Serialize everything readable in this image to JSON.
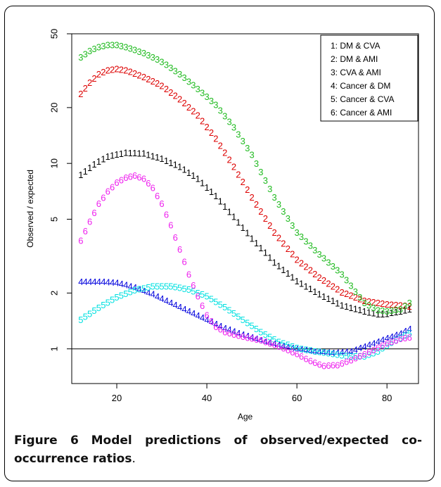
{
  "caption": {
    "label": "Figure 6",
    "text": "Model predictions of observed/expected co-occurrence ratios",
    "period": "."
  },
  "chart_data": {
    "type": "line",
    "xlabel": "Age",
    "ylabel": "Observed / expected",
    "xlim": [
      10,
      87
    ],
    "ylim": [
      0.65,
      50
    ],
    "log_y": true,
    "x_ticks": [
      20,
      40,
      60,
      80
    ],
    "y_ticks": [
      1,
      2,
      5,
      10,
      20,
      50
    ],
    "hline": 1,
    "legend_position": "top-right",
    "age_range": [
      12,
      85
    ],
    "series": [
      {
        "name": "1: DM & CVA",
        "symbol": "1",
        "color": "#000000",
        "points": [
          [
            12,
            8.6
          ],
          [
            15,
            9.8
          ],
          [
            18,
            10.8
          ],
          [
            22,
            11.3
          ],
          [
            26,
            11.2
          ],
          [
            30,
            10.5
          ],
          [
            34,
            9.5
          ],
          [
            38,
            8.2
          ],
          [
            42,
            6.6
          ],
          [
            46,
            5.1
          ],
          [
            50,
            3.9
          ],
          [
            55,
            2.9
          ],
          [
            60,
            2.3
          ],
          [
            65,
            1.95
          ],
          [
            70,
            1.7
          ],
          [
            75,
            1.58
          ],
          [
            78,
            1.52
          ],
          [
            80,
            1.53
          ],
          [
            83,
            1.58
          ],
          [
            85,
            1.62
          ]
        ]
      },
      {
        "name": "2: DM & AMI",
        "symbol": "2",
        "color": "#dd0000",
        "points": [
          [
            12,
            23.5
          ],
          [
            14,
            27
          ],
          [
            16,
            30
          ],
          [
            18,
            31.5
          ],
          [
            20,
            32
          ],
          [
            22,
            31.5
          ],
          [
            26,
            29
          ],
          [
            30,
            26
          ],
          [
            34,
            22
          ],
          [
            38,
            18
          ],
          [
            42,
            13.5
          ],
          [
            46,
            9.5
          ],
          [
            50,
            6.5
          ],
          [
            55,
            4.2
          ],
          [
            60,
            3.0
          ],
          [
            65,
            2.4
          ],
          [
            70,
            2.0
          ],
          [
            75,
            1.8
          ],
          [
            80,
            1.72
          ],
          [
            85,
            1.68
          ]
        ]
      },
      {
        "name": "3: CVA & AMI",
        "symbol": "3",
        "color": "#22bb22",
        "points": [
          [
            12,
            37
          ],
          [
            14,
            40
          ],
          [
            16,
            42
          ],
          [
            18,
            43
          ],
          [
            20,
            43
          ],
          [
            22,
            42
          ],
          [
            26,
            39
          ],
          [
            30,
            35
          ],
          [
            34,
            30
          ],
          [
            38,
            25
          ],
          [
            42,
            20.5
          ],
          [
            46,
            15.5
          ],
          [
            50,
            11
          ],
          [
            55,
            6.5
          ],
          [
            60,
            4.2
          ],
          [
            65,
            3.2
          ],
          [
            70,
            2.5
          ],
          [
            75,
            1.75
          ],
          [
            78,
            1.6
          ],
          [
            80,
            1.58
          ],
          [
            83,
            1.62
          ],
          [
            85,
            1.75
          ]
        ]
      },
      {
        "name": "4: Cancer & DM",
        "symbol": "4",
        "color": "#0000dd",
        "points": [
          [
            12,
            2.28
          ],
          [
            16,
            2.28
          ],
          [
            20,
            2.25
          ],
          [
            24,
            2.12
          ],
          [
            28,
            1.95
          ],
          [
            32,
            1.75
          ],
          [
            36,
            1.58
          ],
          [
            40,
            1.42
          ],
          [
            44,
            1.28
          ],
          [
            48,
            1.18
          ],
          [
            52,
            1.1
          ],
          [
            56,
            1.04
          ],
          [
            60,
            0.99
          ],
          [
            64,
            0.96
          ],
          [
            68,
            0.94
          ],
          [
            72,
            0.96
          ],
          [
            76,
            1.04
          ],
          [
            80,
            1.13
          ],
          [
            83,
            1.2
          ],
          [
            85,
            1.27
          ]
        ]
      },
      {
        "name": "5: Cancer & CVA",
        "symbol": "5",
        "color": "#00e0e0",
        "points": [
          [
            12,
            1.42
          ],
          [
            16,
            1.65
          ],
          [
            20,
            1.88
          ],
          [
            24,
            2.05
          ],
          [
            28,
            2.15
          ],
          [
            32,
            2.15
          ],
          [
            36,
            2.07
          ],
          [
            40,
            1.9
          ],
          [
            44,
            1.66
          ],
          [
            48,
            1.42
          ],
          [
            52,
            1.22
          ],
          [
            56,
            1.08
          ],
          [
            60,
            1.0
          ],
          [
            64,
            0.96
          ],
          [
            68,
            0.93
          ],
          [
            72,
            0.9
          ],
          [
            75,
            0.9
          ],
          [
            78,
            0.96
          ],
          [
            81,
            1.07
          ],
          [
            85,
            1.2
          ]
        ]
      },
      {
        "name": "6: Cancer & AMI",
        "symbol": "6",
        "color": "#ee22ee",
        "points": [
          [
            12,
            3.8
          ],
          [
            14,
            4.8
          ],
          [
            16,
            6.0
          ],
          [
            18,
            7.0
          ],
          [
            20,
            7.8
          ],
          [
            22,
            8.3
          ],
          [
            24,
            8.5
          ],
          [
            26,
            8.2
          ],
          [
            28,
            7.3
          ],
          [
            30,
            6.0
          ],
          [
            32,
            4.6
          ],
          [
            34,
            3.4
          ],
          [
            36,
            2.5
          ],
          [
            38,
            1.9
          ],
          [
            40,
            1.5
          ],
          [
            42,
            1.3
          ],
          [
            44,
            1.22
          ],
          [
            48,
            1.15
          ],
          [
            52,
            1.1
          ],
          [
            56,
            1.02
          ],
          [
            60,
            0.93
          ],
          [
            63,
            0.85
          ],
          [
            66,
            0.8
          ],
          [
            69,
            0.81
          ],
          [
            72,
            0.86
          ],
          [
            76,
            0.95
          ],
          [
            80,
            1.06
          ],
          [
            83,
            1.12
          ],
          [
            85,
            1.14
          ]
        ]
      }
    ]
  }
}
